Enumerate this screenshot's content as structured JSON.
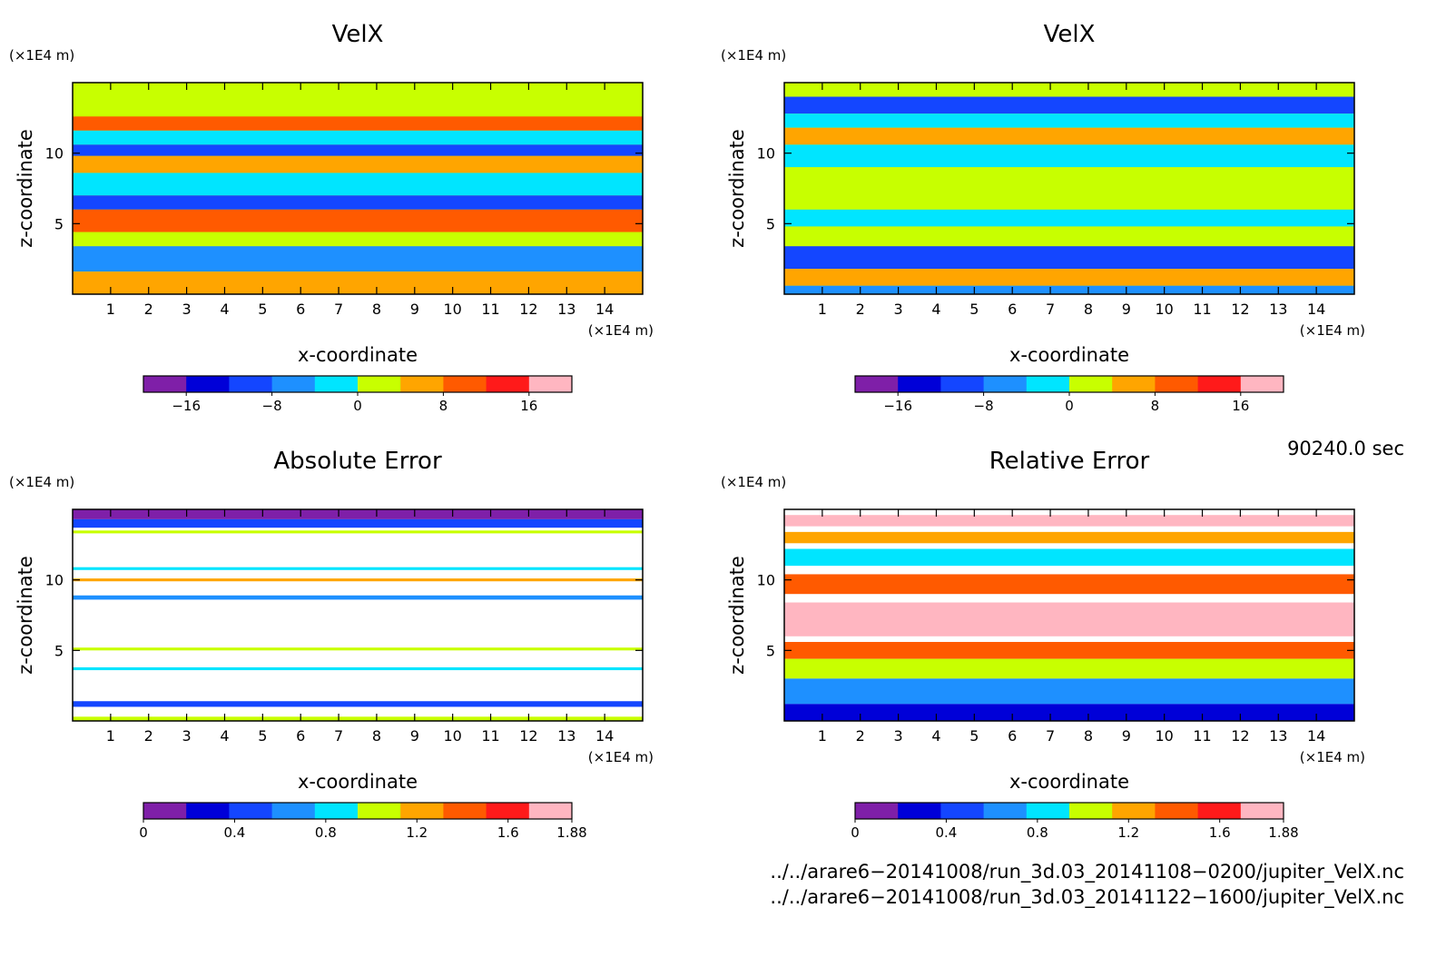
{
  "palette": [
    "#7f1fa8",
    "#0000d8",
    "#1446ff",
    "#1e90ff",
    "#00e5ff",
    "#c8ff00",
    "#ffa500",
    "#ff5a00",
    "#ff1a1a",
    "#ffb6c1"
  ],
  "chart_data": [
    {
      "type": "heatmap",
      "title": "VelX",
      "xlabel": "x-coordinate",
      "ylabel": "z-coordinate",
      "x_unit": "(×1E4 m)",
      "y_unit": "(×1E4 m)",
      "x_ticks": [
        "1",
        "2",
        "3",
        "4",
        "5",
        "6",
        "7",
        "8",
        "9",
        "10",
        "11",
        "12",
        "13",
        "14"
      ],
      "y_ticks": [
        "5",
        "10"
      ],
      "xlim": [
        0,
        15
      ],
      "ylim": [
        0,
        15
      ],
      "colorbar": {
        "min": -20,
        "max": 20,
        "tick_labels": [
          "−16",
          "−8",
          "0",
          "8",
          "16"
        ],
        "tick_values": [
          -16,
          -8,
          0,
          8,
          16
        ]
      },
      "bands": [
        {
          "z_min": 14.0,
          "z_max": 15.0,
          "value": 2
        },
        {
          "z_min": 12.6,
          "z_max": 14.0,
          "value": 2
        },
        {
          "z_min": 11.6,
          "z_max": 12.6,
          "value": 8
        },
        {
          "z_min": 10.6,
          "z_max": 11.6,
          "value": -2
        },
        {
          "z_min": 9.8,
          "z_max": 10.6,
          "value": -10
        },
        {
          "z_min": 8.6,
          "z_max": 9.8,
          "value": 6
        },
        {
          "z_min": 7.0,
          "z_max": 8.6,
          "value": -2
        },
        {
          "z_min": 6.0,
          "z_max": 7.0,
          "value": -10
        },
        {
          "z_min": 4.4,
          "z_max": 6.0,
          "value": 8
        },
        {
          "z_min": 3.4,
          "z_max": 4.4,
          "value": 2
        },
        {
          "z_min": 1.6,
          "z_max": 3.4,
          "value": -6
        },
        {
          "z_min": 0.0,
          "z_max": 1.6,
          "value": 4
        }
      ]
    },
    {
      "type": "heatmap",
      "title": "VelX",
      "xlabel": "x-coordinate",
      "ylabel": "z-coordinate",
      "x_unit": "(×1E4 m)",
      "y_unit": "(×1E4 m)",
      "x_ticks": [
        "1",
        "2",
        "3",
        "4",
        "5",
        "6",
        "7",
        "8",
        "9",
        "10",
        "11",
        "12",
        "13",
        "14"
      ],
      "y_ticks": [
        "5",
        "10"
      ],
      "xlim": [
        0,
        15
      ],
      "ylim": [
        0,
        15
      ],
      "colorbar": {
        "min": -20,
        "max": 20,
        "tick_labels": [
          "−16",
          "−8",
          "0",
          "8",
          "16"
        ],
        "tick_values": [
          -16,
          -8,
          0,
          8,
          16
        ]
      },
      "bands": [
        {
          "z_min": 14.0,
          "z_max": 15.0,
          "value": 2
        },
        {
          "z_min": 12.8,
          "z_max": 14.0,
          "value": -10
        },
        {
          "z_min": 11.8,
          "z_max": 12.8,
          "value": -2
        },
        {
          "z_min": 10.6,
          "z_max": 11.8,
          "value": 6
        },
        {
          "z_min": 9.0,
          "z_max": 10.6,
          "value": -2
        },
        {
          "z_min": 6.0,
          "z_max": 9.0,
          "value": 2
        },
        {
          "z_min": 4.8,
          "z_max": 6.0,
          "value": -2
        },
        {
          "z_min": 3.4,
          "z_max": 4.8,
          "value": 2
        },
        {
          "z_min": 1.8,
          "z_max": 3.4,
          "value": -10
        },
        {
          "z_min": 0.6,
          "z_max": 1.8,
          "value": 6
        },
        {
          "z_min": 0.0,
          "z_max": 0.6,
          "value": -6
        }
      ]
    },
    {
      "type": "heatmap",
      "title": "Absolute Error",
      "xlabel": "x-coordinate",
      "ylabel": "z-coordinate",
      "x_unit": "(×1E4 m)",
      "y_unit": "(×1E4 m)",
      "x_ticks": [
        "1",
        "2",
        "3",
        "4",
        "5",
        "6",
        "7",
        "8",
        "9",
        "10",
        "11",
        "12",
        "13",
        "14"
      ],
      "y_ticks": [
        "5",
        "10"
      ],
      "xlim": [
        0,
        15
      ],
      "ylim": [
        0,
        15
      ],
      "colorbar": {
        "min": 0,
        "max": 1.88,
        "tick_labels": [
          "0",
          "0.4",
          "0.8",
          "1.2",
          "1.6",
          "1.88"
        ],
        "tick_values": [
          0,
          0.4,
          0.8,
          1.2,
          1.6,
          1.88
        ]
      },
      "bands": [
        {
          "z_min": 14.3,
          "z_max": 15.0,
          "value": 0.1
        },
        {
          "z_min": 13.7,
          "z_max": 14.3,
          "value": 0.5
        },
        {
          "z_min": 13.3,
          "z_max": 13.5,
          "value": 1.0
        },
        {
          "z_min": 10.7,
          "z_max": 10.9,
          "value": 0.9
        },
        {
          "z_min": 9.9,
          "z_max": 10.1,
          "value": 1.3
        },
        {
          "z_min": 8.6,
          "z_max": 8.9,
          "value": 0.7
        },
        {
          "z_min": 5.0,
          "z_max": 5.2,
          "value": 1.0
        },
        {
          "z_min": 3.6,
          "z_max": 3.8,
          "value": 0.8
        },
        {
          "z_min": 1.0,
          "z_max": 1.4,
          "value": 0.5
        },
        {
          "z_min": 0.0,
          "z_max": 0.3,
          "value": 1.1
        }
      ]
    },
    {
      "type": "heatmap",
      "title": "Relative Error",
      "xlabel": "x-coordinate",
      "ylabel": "z-coordinate",
      "x_unit": "(×1E4 m)",
      "y_unit": "(×1E4 m)",
      "x_ticks": [
        "1",
        "2",
        "3",
        "4",
        "5",
        "6",
        "7",
        "8",
        "9",
        "10",
        "11",
        "12",
        "13",
        "14"
      ],
      "y_ticks": [
        "5",
        "10"
      ],
      "xlim": [
        0,
        15
      ],
      "ylim": [
        0,
        15
      ],
      "colorbar": {
        "min": 0,
        "max": 1.88,
        "tick_labels": [
          "0",
          "0.4",
          "0.8",
          "1.2",
          "1.6",
          "1.88"
        ],
        "tick_values": [
          0,
          0.4,
          0.8,
          1.2,
          1.6,
          1.88
        ]
      },
      "bands": [
        {
          "z_min": 13.8,
          "z_max": 14.6,
          "value": 1.7
        },
        {
          "z_min": 12.6,
          "z_max": 13.4,
          "value": 1.2
        },
        {
          "z_min": 11.0,
          "z_max": 12.2,
          "value": 0.9
        },
        {
          "z_min": 9.0,
          "z_max": 10.4,
          "value": 1.5
        },
        {
          "z_min": 6.0,
          "z_max": 8.4,
          "value": 1.7
        },
        {
          "z_min": 4.4,
          "z_max": 5.6,
          "value": 1.5
        },
        {
          "z_min": 3.0,
          "z_max": 4.4,
          "value": 1.1
        },
        {
          "z_min": 1.2,
          "z_max": 3.0,
          "value": 0.6
        },
        {
          "z_min": 0.0,
          "z_max": 1.2,
          "value": 0.2
        }
      ]
    }
  ],
  "timestamp": "90240.0 sec",
  "footer": {
    "file1": "../../arare6−20141008/run_3d.03_20141108−0200/jupiter_VelX.nc",
    "file2": "../../arare6−20141008/run_3d.03_20141122−1600/jupiter_VelX.nc"
  }
}
